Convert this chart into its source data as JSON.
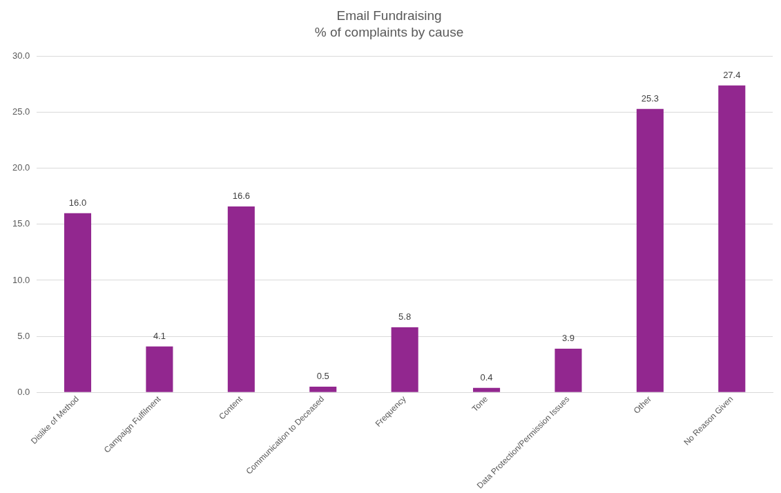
{
  "chart_data": {
    "type": "bar",
    "title": "Email Fundraising",
    "subtitle": "% of complaints by cause",
    "categories": [
      "Dislike of Method",
      "Campaign Fulfilment",
      "Content",
      "Communication to Deceased",
      "Frequency",
      "Tone",
      "Data Protection/Permission Issues",
      "Other",
      "No Reason Given"
    ],
    "values": [
      16.0,
      4.1,
      16.6,
      0.5,
      5.8,
      0.4,
      3.9,
      25.3,
      27.4
    ],
    "value_labels": [
      "16.0",
      "4.1",
      "16.6",
      "0.5",
      "5.8",
      "0.4",
      "3.9",
      "25.3",
      "27.4"
    ],
    "color": "#92278f",
    "ylim": [
      0,
      30
    ],
    "yticks": [
      {
        "value": 0,
        "label": "0.0"
      },
      {
        "value": 5,
        "label": "5.0"
      },
      {
        "value": 10,
        "label": "10.0"
      },
      {
        "value": 15,
        "label": "15.0"
      },
      {
        "value": 20,
        "label": "20.0"
      },
      {
        "value": 25,
        "label": "25.0"
      },
      {
        "value": 30,
        "label": "30.0"
      }
    ],
    "grid": "y",
    "legend": false
  }
}
